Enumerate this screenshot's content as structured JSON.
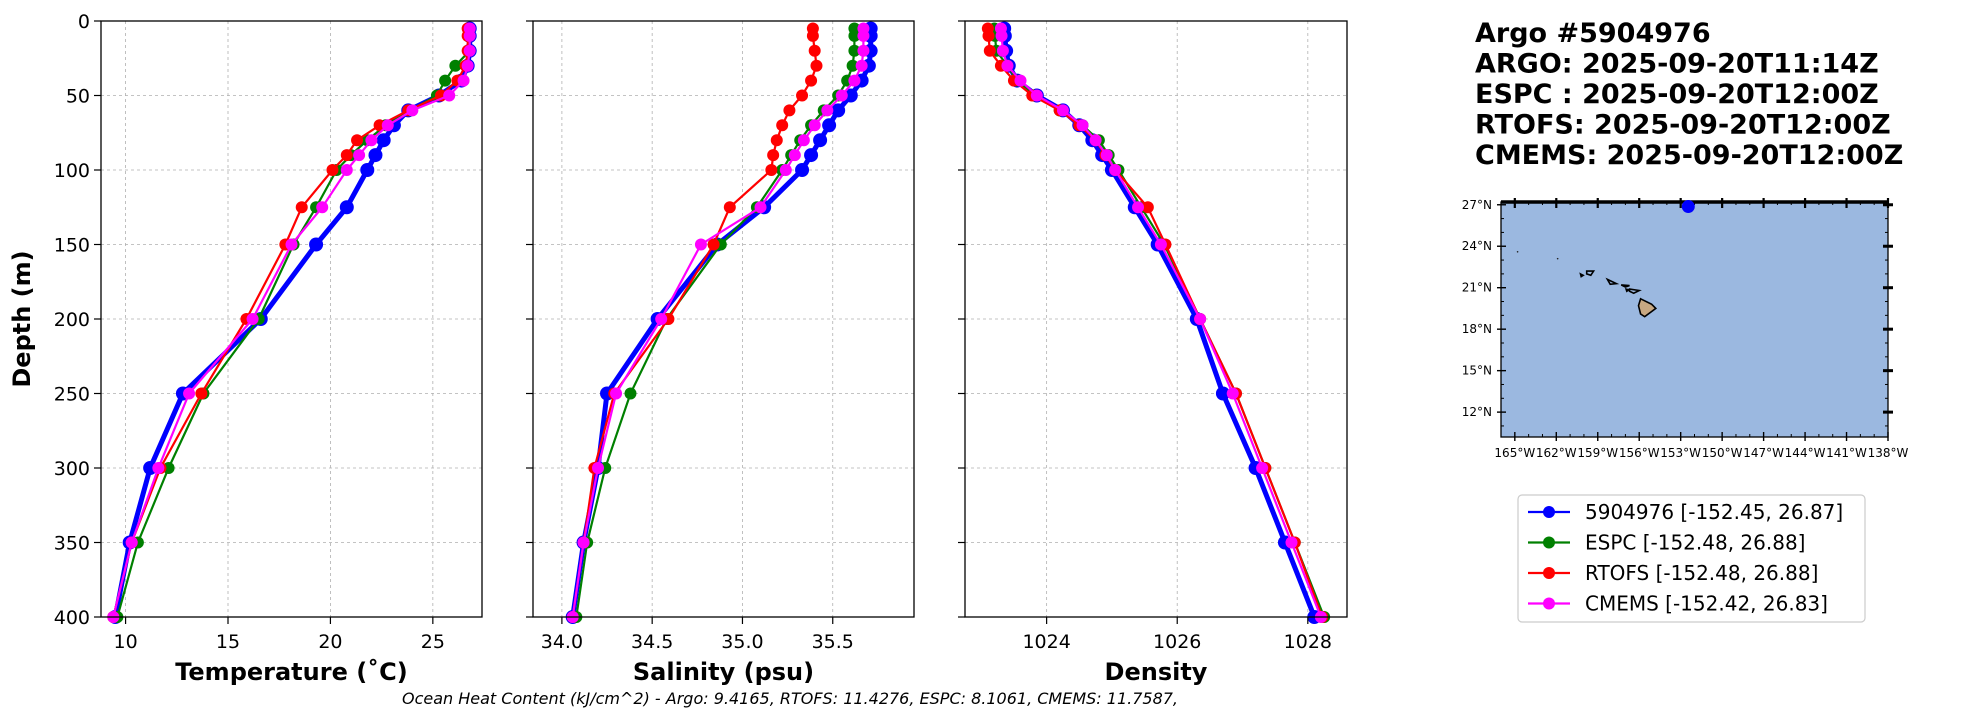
{
  "colors": {
    "argo": "#0000ff",
    "espc": "#008000",
    "rtofs": "#ff0000",
    "cmems": "#ff00ff",
    "ocean": "#9bb8e0",
    "land": "#c8a882"
  },
  "title_lines": [
    "Argo #5904976",
    "ARGO: 2025-09-20T11:14Z",
    "ESPC : 2025-09-20T12:00Z",
    "RTOFS: 2025-09-20T12:00Z",
    "CMEMS: 2025-09-20T12:00Z"
  ],
  "footer": "Ocean Heat Content (kJ/cm^2) - Argo: 9.4165,  RTOFS: 11.4276,  ESPC: 8.1061,  CMEMS: 11.7587,",
  "chart_data": [
    {
      "type": "line",
      "xlabel": "Temperature (˚C)",
      "ylabel": "Depth (m)",
      "xlim": [
        8.8,
        27.4
      ],
      "ylim": [
        400,
        0
      ],
      "xticks": [
        10,
        15,
        20,
        25
      ],
      "yticks": [
        0,
        50,
        100,
        150,
        200,
        250,
        300,
        350,
        400
      ],
      "grid": true,
      "depth": [
        5,
        10,
        20,
        30,
        40,
        50,
        60,
        70,
        80,
        90,
        100,
        125,
        150,
        200,
        250,
        300,
        350,
        400
      ],
      "series": [
        {
          "name": "5904976",
          "key": "argo",
          "x": [
            26.8,
            26.8,
            26.8,
            26.7,
            26.4,
            25.3,
            23.8,
            23.1,
            22.6,
            22.2,
            21.8,
            20.8,
            19.3,
            16.6,
            12.8,
            11.2,
            10.2,
            9.5
          ],
          "depth": [
            5,
            10,
            20,
            30,
            40,
            50,
            60,
            70,
            80,
            90,
            100,
            125,
            150,
            200,
            250,
            300,
            350,
            400
          ]
        },
        {
          "name": "ESPC",
          "key": "espc",
          "x": [
            26.8,
            26.8,
            26.8,
            26.1,
            25.6,
            25.2,
            23.9,
            22.7,
            21.8,
            21.0,
            20.3,
            19.3,
            18.2,
            16.5,
            13.8,
            12.1,
            10.6,
            9.6
          ]
        },
        {
          "name": "RTOFS",
          "key": "rtofs",
          "x": [
            26.7,
            26.7,
            26.7,
            26.6,
            26.2,
            25.4,
            23.8,
            22.4,
            21.3,
            20.8,
            20.1,
            18.6,
            17.8,
            15.9,
            13.7,
            11.7,
            10.3,
            9.4
          ]
        },
        {
          "name": "CMEMS",
          "key": "cmems",
          "x": [
            26.8,
            26.8,
            26.8,
            26.7,
            26.5,
            25.8,
            24.0,
            22.8,
            22.0,
            21.4,
            20.8,
            19.6,
            18.1,
            16.2,
            13.1,
            11.6,
            10.3,
            9.4
          ]
        }
      ]
    },
    {
      "type": "line",
      "xlabel": "Salinity (psu)",
      "ylabel": "",
      "xlim": [
        33.84,
        35.95
      ],
      "ylim": [
        400,
        0
      ],
      "xticks": [
        34.0,
        34.5,
        35.0,
        35.5
      ],
      "xticklabels": [
        "34.0",
        "34.5",
        "35.0",
        "35.5"
      ],
      "yticks": [
        0,
        50,
        100,
        150,
        200,
        250,
        300,
        350,
        400
      ],
      "grid": true,
      "depth": [
        5,
        10,
        20,
        30,
        40,
        50,
        60,
        70,
        80,
        90,
        100,
        125,
        150,
        200,
        250,
        300,
        350,
        400
      ],
      "series": [
        {
          "name": "5904976",
          "key": "argo",
          "x": [
            35.71,
            35.71,
            35.71,
            35.7,
            35.66,
            35.6,
            35.53,
            35.48,
            35.43,
            35.38,
            35.33,
            35.12,
            34.86,
            34.53,
            34.25,
            34.2,
            34.12,
            34.06
          ]
        },
        {
          "name": "ESPC",
          "key": "espc",
          "x": [
            35.62,
            35.62,
            35.62,
            35.61,
            35.58,
            35.53,
            35.45,
            35.38,
            35.32,
            35.27,
            35.22,
            35.08,
            34.88,
            34.58,
            34.38,
            34.24,
            34.14,
            34.08
          ]
        },
        {
          "name": "RTOFS",
          "key": "rtofs",
          "x": [
            35.39,
            35.39,
            35.4,
            35.41,
            35.38,
            35.33,
            35.26,
            35.22,
            35.19,
            35.17,
            35.16,
            34.93,
            34.84,
            34.59,
            34.29,
            34.18,
            34.12,
            34.06
          ]
        },
        {
          "name": "CMEMS",
          "key": "cmems",
          "x": [
            35.67,
            35.67,
            35.67,
            35.66,
            35.62,
            35.55,
            35.47,
            35.4,
            35.34,
            35.29,
            35.24,
            35.1,
            34.77,
            34.55,
            34.3,
            34.2,
            34.12,
            34.06
          ]
        }
      ]
    },
    {
      "type": "line",
      "xlabel": "Density",
      "ylabel": "",
      "xlim": [
        1022.75,
        1028.6
      ],
      "ylim": [
        400,
        0
      ],
      "xticks": [
        1024,
        1026,
        1028
      ],
      "yticks": [
        0,
        50,
        100,
        150,
        200,
        250,
        300,
        350,
        400
      ],
      "grid": true,
      "depth": [
        5,
        10,
        20,
        30,
        40,
        50,
        60,
        70,
        80,
        90,
        100,
        125,
        150,
        200,
        250,
        300,
        350,
        400
      ],
      "series": [
        {
          "name": "5904976",
          "key": "argo",
          "x": [
            1023.35,
            1023.36,
            1023.38,
            1023.42,
            1023.55,
            1023.85,
            1024.25,
            1024.5,
            1024.7,
            1024.85,
            1025.0,
            1025.35,
            1025.7,
            1026.3,
            1026.7,
            1027.2,
            1027.65,
            1028.1
          ]
        },
        {
          "name": "ESPC",
          "key": "espc",
          "x": [
            1023.2,
            1023.21,
            1023.23,
            1023.4,
            1023.55,
            1023.8,
            1024.2,
            1024.55,
            1024.8,
            1024.95,
            1025.1,
            1025.45,
            1025.8,
            1026.35,
            1026.9,
            1027.35,
            1027.8,
            1028.25
          ]
        },
        {
          "name": "RTOFS",
          "key": "rtofs",
          "x": [
            1023.1,
            1023.11,
            1023.13,
            1023.3,
            1023.5,
            1023.78,
            1024.2,
            1024.5,
            1024.75,
            1024.9,
            1025.05,
            1025.55,
            1025.82,
            1026.35,
            1026.9,
            1027.35,
            1027.8,
            1028.22
          ]
        },
        {
          "name": "CMEMS",
          "key": "cmems",
          "x": [
            1023.3,
            1023.31,
            1023.33,
            1023.4,
            1023.6,
            1023.85,
            1024.25,
            1024.55,
            1024.75,
            1024.92,
            1025.05,
            1025.4,
            1025.75,
            1026.35,
            1026.85,
            1027.3,
            1027.75,
            1028.2
          ]
        }
      ]
    }
  ],
  "map": {
    "lat_labels": [
      "27°N",
      "24°N",
      "21°N",
      "18°N",
      "15°N",
      "12°N"
    ],
    "lat_values": [
      27,
      24,
      21,
      18,
      15,
      12
    ],
    "lon_labels": [
      "165°W",
      "162°W",
      "159°W",
      "156°W",
      "153°W",
      "150°W",
      "147°W",
      "144°W",
      "141°W",
      "138°W"
    ],
    "lon_values": [
      -165,
      -162,
      -159,
      -156,
      -153,
      -150,
      -147,
      -144,
      -141,
      -138
    ],
    "lon_range": [
      -166,
      -138
    ],
    "lat_range": [
      10.2,
      27.2
    ],
    "float_position": [
      -152.45,
      26.87
    ]
  },
  "legend": [
    {
      "label": "5904976 [-152.45, 26.87]",
      "key": "argo"
    },
    {
      "label": "ESPC [-152.48, 26.88]",
      "key": "espc"
    },
    {
      "label": "RTOFS [-152.48, 26.88]",
      "key": "rtofs"
    },
    {
      "label": "CMEMS [-152.42, 26.83]",
      "key": "cmems"
    }
  ]
}
